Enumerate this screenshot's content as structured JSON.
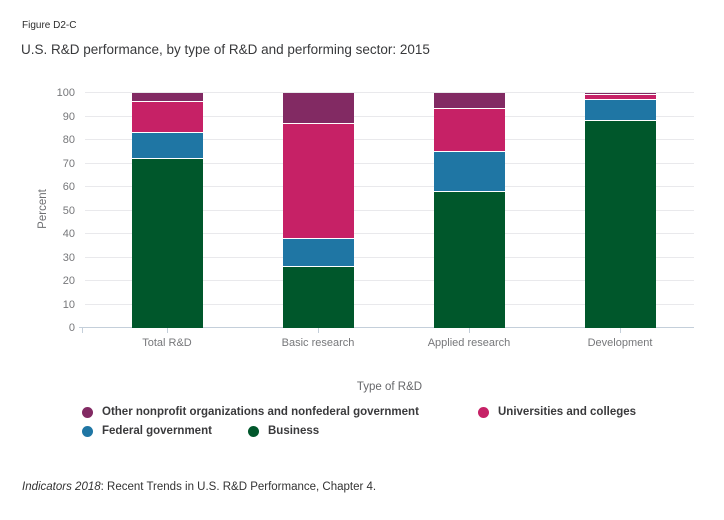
{
  "figure_label": "Figure D2-C",
  "title": "U.S. R&D performance, by type of R&D and performing sector: 2015",
  "source_note": {
    "italic": "Indicators 2018",
    "rest": ": Recent Trends in U.S. R&D Performance, Chapter 4."
  },
  "chart_data": {
    "type": "bar",
    "stacked": true,
    "title": "U.S. R&D performance, by type of R&D and performing sector: 2015",
    "categories": [
      "Total R&D",
      "Basic research",
      "Applied research",
      "Development"
    ],
    "series": [
      {
        "name": "Business",
        "color": "#00572b",
        "values": [
          72,
          26,
          58,
          88
        ]
      },
      {
        "name": "Federal government",
        "color": "#1f76a4",
        "values": [
          11,
          12,
          17,
          9
        ]
      },
      {
        "name": "Universities and colleges",
        "color": "#c62166",
        "values": [
          13,
          49,
          18,
          2
        ]
      },
      {
        "name": "Other nonprofit organizations and nonfederal government",
        "color": "#822a63",
        "values": [
          4,
          13,
          7,
          1
        ]
      }
    ],
    "xlabel": "Type of R&D",
    "ylabel": "Percent",
    "ylim": [
      0,
      100
    ],
    "ytick_step": 10,
    "unit": "percent",
    "grid": true,
    "legend_position": "bottom"
  }
}
